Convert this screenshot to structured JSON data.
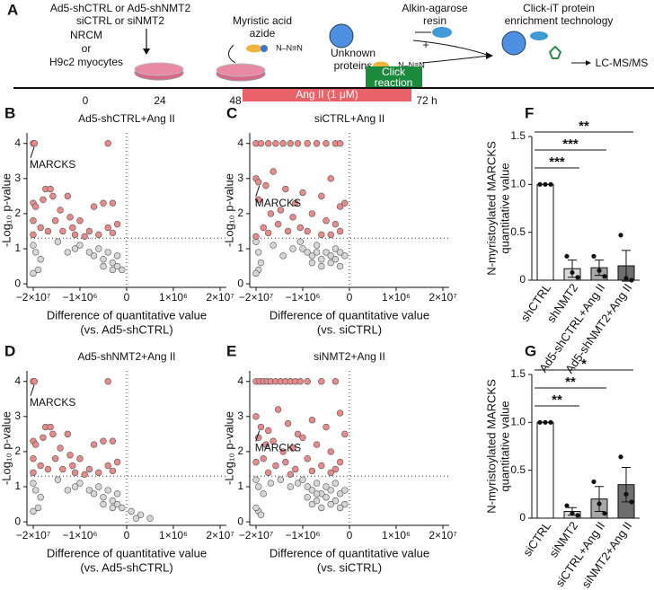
{
  "schematic": {
    "panel": "A",
    "vectors": [
      "Ad5-shCTRL or Ad5-shNMT2",
      "siCTRL or siNMT2"
    ],
    "cells": [
      "NRCM",
      "or",
      "H9c2 myocytes"
    ],
    "azide": [
      "Myristic acid",
      "azide"
    ],
    "azide_group": "N–N≡N",
    "proteins": [
      "Unknown",
      "proteins"
    ],
    "resin": [
      "Alkin-agarose",
      "resin"
    ],
    "plus": "+",
    "enrichment": [
      "Click-iT protein",
      "enrichment technology"
    ],
    "output": "LC-MS/MS",
    "timeline": [
      "0",
      "24",
      "48",
      "72 h"
    ],
    "treatment": "Ang II (1 μM)",
    "click": [
      "Click",
      "reaction"
    ]
  },
  "chart_data": [
    {
      "type": "scatter",
      "panel": "B",
      "title": "Ad5-shCTRL+Ang II",
      "xlabel": [
        "Difference of quantitative value",
        "(vs. Ad5-shCTRL)"
      ],
      "ylabel": "-Log₁₀ p-value",
      "xscale": "piecewise",
      "xlim": [
        -22600000.0,
        22600000.0
      ],
      "xticks": [
        {
          "value": -20000000.0,
          "label": "−2×10⁷"
        },
        {
          "value": -1000000.0,
          "label": "−1×10⁶"
        },
        0,
        {
          "value": 1000000.0,
          "label": "1×10⁶"
        },
        {
          "value": 20000000.0,
          "label": "2×10⁷"
        }
      ],
      "ylim": [
        -0.1,
        4.3
      ],
      "yticks": [
        0,
        1,
        2,
        3,
        4
      ],
      "hline": 1.3,
      "vline": 0,
      "series": [
        {
          "color": "#e8898a",
          "x": [
            -20000000.0,
            -19500000.0,
            -400000.0,
            -15000000.0,
            -12000000.0,
            -13000000.0,
            -20000000.0,
            -19000000.0,
            -16000000.0,
            -9000000.0,
            -6000000.0,
            -5000000.0,
            -1000000.0,
            -700000.0,
            -500000.0,
            -300000.0,
            -200000.0,
            -20000000.0,
            -17000000.0,
            -11000000.0,
            -8000000.0,
            -4000000.0,
            -800000.0,
            -600000.0,
            -400000.0,
            -20000000.0,
            -14000000.0,
            -3000000.0,
            -900000.0,
            -300000.0
          ],
          "values": [
            4,
            4,
            4,
            2.7,
            2.5,
            2.7,
            2.3,
            2.2,
            2.4,
            2.1,
            2.5,
            1.9,
            1.8,
            2.2,
            2.3,
            2.3,
            1.7,
            1.8,
            1.6,
            1.8,
            1.5,
            1.6,
            1.5,
            1.4,
            1.6,
            1.4,
            1.5,
            1.4,
            1.35,
            1.45
          ]
        },
        {
          "color": "#d6d6d6",
          "x": [
            -20000000.0,
            -19000000.0,
            -17000000.0,
            -10000000.0,
            -6000000.0,
            -3000000.0,
            -1000000.0,
            -800000.0,
            -700000.0,
            -600000.0,
            -500000.0,
            -400000.0,
            -300000.0,
            -200000.0,
            -100000.0,
            -500000.0,
            -300000.0,
            -200000.0,
            -18000000.0,
            -20000000.0
          ],
          "values": [
            1.1,
            0.9,
            0.7,
            1.2,
            0.9,
            1.0,
            1.1,
            0.9,
            0.8,
            1.0,
            0.7,
            0.9,
            0.6,
            0.8,
            0.4,
            0.5,
            0.4,
            0.5,
            0.4,
            0.3
          ]
        }
      ],
      "annotation": {
        "text": "MARCKS",
        "x": -20000000.0,
        "y": 4
      }
    },
    {
      "type": "scatter",
      "panel": "C",
      "title": "siCTRL+Ang II",
      "xlabel": [
        "Difference of quantitative value",
        "(vs. siCTRL)"
      ],
      "ylabel": "-Log₁₀ p-value",
      "xscale": "piecewise",
      "xlim": [
        -22600000.0,
        22600000.0
      ],
      "xticks": [
        {
          "value": -20000000.0,
          "label": "−2×10⁷"
        },
        {
          "value": -1000000.0,
          "label": "−1×10⁶"
        },
        0,
        {
          "value": 1000000.0,
          "label": "1×10⁶"
        },
        {
          "value": 20000000.0,
          "label": "2×10⁷"
        }
      ],
      "ylim": [
        -0.1,
        4.3
      ],
      "yticks": [
        0,
        1,
        2,
        3,
        4
      ],
      "hline": 1.3,
      "vline": 0,
      "series": [
        {
          "color": "#e8898a",
          "x": [
            -20000000.0,
            -18000000.0,
            -15000000.0,
            -12000000.0,
            -9000000.0,
            -6000000.0,
            -3000000.0,
            -900000.0,
            -700000.0,
            -500000.0,
            -300000.0,
            -200000.0,
            -20000000.0,
            -19000000.0,
            -16000000.0,
            -13000000.0,
            -8000000.0,
            -4000000.0,
            -1000000.0,
            -600000.0,
            -400000.0,
            -200000.0,
            -19000000.0,
            -14000000.0,
            -10000000.0,
            -5000000.0,
            -800000.0,
            -500000.0,
            -300000.0,
            -100000.0,
            -17000000.0,
            -11000000.0,
            -7000000.0,
            -2000000.0,
            -900000.0,
            -600000.0,
            -400000.0,
            -200000.0,
            -20000000.0,
            -15000000.0
          ],
          "values": [
            4,
            4,
            4,
            4,
            4,
            4,
            4,
            4,
            4,
            4,
            4,
            4,
            3.0,
            2.9,
            2.8,
            3.2,
            2.7,
            2.3,
            2.6,
            2.5,
            3.0,
            2.2,
            2.4,
            2.0,
            2.1,
            1.9,
            2.0,
            1.8,
            1.7,
            2.3,
            1.6,
            1.7,
            1.5,
            1.6,
            1.5,
            1.4,
            1.4,
            1.5,
            1.35,
            1.45
          ]
        },
        {
          "color": "#d6d6d6",
          "x": [
            -20000000.0,
            -19000000.0,
            -18000000.0,
            -13000000.0,
            -9000000.0,
            -5000000.0,
            -2000000.0,
            -1000000.0,
            -900000.0,
            -800000.0,
            -700000.0,
            -600000.0,
            -500000.0,
            -400000.0,
            -300000.0,
            -200000.0,
            -100000.0,
            -800000.0,
            -600000.0,
            -400000.0,
            -200000.0,
            -19000000.0,
            -20000000.0,
            -700000.0,
            -300000.0
          ],
          "values": [
            1.2,
            0.9,
            0.6,
            1.1,
            0.8,
            1.0,
            1.2,
            1.0,
            0.9,
            0.8,
            0.9,
            0.7,
            0.9,
            0.8,
            1.0,
            0.9,
            0.8,
            0.6,
            0.5,
            0.6,
            0.5,
            0.4,
            0.3,
            1.1,
            0.7
          ]
        }
      ],
      "annotation": {
        "text": "MARCKS",
        "x": -19000000.0,
        "y": 2.9
      }
    },
    {
      "type": "scatter",
      "panel": "D",
      "title": "Ad5-shNMT2+Ang II",
      "xlabel": [
        "Difference of quantitative value",
        "(vs. Ad5-shCTRL)"
      ],
      "ylabel": "-Log₁₀ p-value",
      "xscale": "piecewise",
      "xlim": [
        -22600000.0,
        22600000.0
      ],
      "xticks": [
        {
          "value": -20000000.0,
          "label": "−2×10⁷"
        },
        {
          "value": -1000000.0,
          "label": "−1×10⁶"
        },
        0,
        {
          "value": 1000000.0,
          "label": "1×10⁶"
        },
        {
          "value": 20000000.0,
          "label": "2×10⁷"
        }
      ],
      "ylim": [
        -0.1,
        4.3
      ],
      "yticks": [
        0,
        1,
        2,
        3,
        4
      ],
      "hline": 1.3,
      "vline": 0,
      "series": [
        {
          "color": "#e8898a",
          "x": [
            -20000000.0,
            -19500000.0,
            -400000.0,
            -15000000.0,
            -12000000.0,
            -13000000.0,
            -20000000.0,
            -19000000.0,
            -16000000.0,
            -9000000.0,
            -6000000.0,
            -5000000.0,
            -1000000.0,
            -700000.0,
            -500000.0,
            -300000.0,
            -200000.0,
            -20000000.0,
            -17000000.0,
            -11000000.0,
            -8000000.0,
            -4000000.0,
            -800000.0,
            -600000.0,
            -400000.0,
            -20000000.0,
            -14000000.0,
            -3000000.0,
            -900000.0,
            -300000.0
          ],
          "values": [
            4,
            4,
            4,
            2.7,
            2.5,
            2.7,
            2.3,
            2.2,
            2.4,
            2.1,
            2.5,
            1.9,
            1.8,
            2.2,
            2.3,
            2.3,
            1.7,
            1.8,
            1.6,
            1.8,
            1.5,
            1.6,
            1.5,
            1.4,
            1.6,
            1.4,
            1.5,
            1.4,
            1.35,
            1.45
          ]
        },
        {
          "color": "#d6d6d6",
          "x": [
            -20000000.0,
            -19000000.0,
            -17000000.0,
            -10000000.0,
            -6000000.0,
            -3000000.0,
            -1000000.0,
            -800000.0,
            -700000.0,
            -600000.0,
            -500000.0,
            -400000.0,
            -300000.0,
            -200000.0,
            -100000.0,
            -500000.0,
            -300000.0,
            -200000.0,
            -18000000.0,
            -20000000.0,
            100000.0,
            300000.0,
            500000.0,
            200000.0
          ],
          "values": [
            1.1,
            0.9,
            0.7,
            1.2,
            0.9,
            1.0,
            1.1,
            0.9,
            0.8,
            1.0,
            0.7,
            0.9,
            0.6,
            0.8,
            0.4,
            0.5,
            0.4,
            0.5,
            0.4,
            0.3,
            0.3,
            0.2,
            0.1,
            0.1
          ]
        }
      ],
      "annotation": {
        "text": "MARCKS",
        "x": -20000000.0,
        "y": 4
      }
    },
    {
      "type": "scatter",
      "panel": "E",
      "title": "siNMT2+Ang II",
      "xlabel": [
        "Difference of quantitative value",
        "(vs. siCTRL)"
      ],
      "ylabel": "-Log₁₀ p-value",
      "xscale": "piecewise",
      "xlim": [
        -22600000.0,
        22600000.0
      ],
      "xticks": [
        {
          "value": -20000000.0,
          "label": "−2×10⁷"
        },
        {
          "value": -1000000.0,
          "label": "−1×10⁶"
        },
        0,
        {
          "value": 1000000.0,
          "label": "1×10⁶"
        },
        {
          "value": 20000000.0,
          "label": "2×10⁷"
        }
      ],
      "ylim": [
        -0.1,
        4.3
      ],
      "yticks": [
        0,
        1,
        2,
        3,
        4
      ],
      "hline": 1.3,
      "vline": 0,
      "series": [
        {
          "color": "#e8898a",
          "x": [
            -20000000.0,
            -18500000.0,
            -17000000.0,
            -15500000.0,
            -14000000.0,
            -12000000.0,
            -10000000.0,
            -8000000.0,
            -6000000.0,
            -4000000.0,
            -2000000.0,
            -900000.0,
            -600000.0,
            -300000.0,
            -20000000.0,
            -18000000.0,
            -15000000.0,
            -11000000.0,
            -7000000.0,
            -3000000.0,
            -800000.0,
            -500000.0,
            -200000.0,
            -19000000.0,
            -16000000.0,
            -13000000.0,
            -9000000.0,
            -5000000.0,
            -1000000.0,
            -700000.0,
            -400000.0,
            -100000.0,
            -20000000.0,
            -17000000.0,
            -12000000.0,
            -8000000.0,
            -4000000.0,
            -900000.0,
            -600000.0,
            -300000.0,
            -200000.0,
            -15000000.0,
            -6000000.0,
            -800000.0,
            -400000.0
          ],
          "values": [
            4,
            4,
            4,
            4,
            4,
            4,
            4,
            4,
            4,
            4,
            4,
            4,
            4,
            4,
            3.0,
            2.7,
            2.6,
            3.2,
            2.8,
            2.5,
            2.9,
            2.7,
            3.1,
            2.4,
            2.2,
            2.3,
            2.0,
            2.1,
            2.4,
            2.2,
            2.0,
            2.5,
            1.7,
            1.8,
            1.6,
            1.7,
            1.5,
            1.8,
            1.6,
            1.5,
            1.7,
            1.4,
            1.35,
            1.45,
            1.4
          ]
        },
        {
          "color": "#d6d6d6",
          "x": [
            -20000000.0,
            -19000000.0,
            -17000000.0,
            -14000000.0,
            -10000000.0,
            -6000000.0,
            -3000000.0,
            -1000000.0,
            -900000.0,
            -800000.0,
            -700000.0,
            -600000.0,
            -500000.0,
            -400000.0,
            -300000.0,
            -200000.0,
            -100000.0,
            -900000.0,
            -700000.0,
            -500000.0,
            -300000.0,
            -100000.0,
            -800000.0,
            -600000.0,
            -400000.0,
            -200000.0,
            -19000000.0,
            -20000000.0,
            -18000000.0,
            -700000.0
          ],
          "values": [
            1.2,
            1.0,
            0.8,
            1.1,
            1.2,
            1.0,
            1.1,
            1.2,
            1.0,
            0.9,
            1.1,
            0.8,
            1.0,
            0.9,
            1.1,
            0.8,
            0.9,
            0.7,
            0.6,
            0.7,
            0.6,
            0.5,
            0.5,
            0.4,
            0.5,
            0.4,
            0.3,
            0.4,
            0.2,
            0.8
          ]
        }
      ],
      "annotation": {
        "text": "MARCKS",
        "x": -19000000.0,
        "y": 2.7
      }
    },
    {
      "type": "bar",
      "panel": "F",
      "ylabel": [
        "N-myristoylated MARCKS",
        "quantitative value"
      ],
      "categories": [
        "shCTRL",
        "shNMT2",
        "Ad5-shCTRL+Ang II",
        "Ad5-shNMT2+Ang II"
      ],
      "values": [
        1.0,
        0.12,
        0.13,
        0.15
      ],
      "errors": [
        0,
        0.09,
        0.08,
        0.16
      ],
      "points": [
        [
          1,
          1,
          1
        ],
        [
          0.25,
          0.08,
          0.03
        ],
        [
          0.25,
          0.1,
          0.04
        ],
        [
          0.47,
          0.02,
          0
        ]
      ],
      "colors": [
        "#ffffff",
        "#d9d9d9",
        "#a6a6a6",
        "#6e6e6e"
      ],
      "ylim": [
        0,
        1.5
      ],
      "yticks": [
        0,
        0.5,
        {
          "value": 1,
          "label": "1.0"
        },
        1.5
      ],
      "comparisons": [
        {
          "pair": [
            0,
            3
          ],
          "label": "**"
        },
        {
          "pair": [
            0,
            2
          ],
          "label": "***"
        },
        {
          "pair": [
            0,
            1
          ],
          "label": "***"
        }
      ]
    },
    {
      "type": "bar",
      "panel": "G",
      "ylabel": [
        "N-myristoylated MARCKS",
        "quantitative value"
      ],
      "categories": [
        "siCTRL",
        "siNMT2",
        "siCTRL+Ang II",
        "siNMT2+Ang II"
      ],
      "values": [
        1.0,
        0.07,
        0.2,
        0.35
      ],
      "errors": [
        0,
        0.04,
        0.13,
        0.18
      ],
      "points": [
        [
          1,
          1,
          1
        ],
        [
          0.13,
          0.05,
          0.03
        ],
        [
          0.38,
          0.15,
          0.05
        ],
        [
          0.64,
          0.25,
          0.17
        ]
      ],
      "colors": [
        "#ffffff",
        "#d9d9d9",
        "#a6a6a6",
        "#6e6e6e"
      ],
      "ylim": [
        0,
        1.5
      ],
      "yticks": [
        0,
        0.5,
        {
          "value": 1,
          "label": "1.0"
        },
        1.5
      ],
      "comparisons": [
        {
          "pair": [
            0,
            3
          ],
          "label": "*"
        },
        {
          "pair": [
            0,
            2
          ],
          "label": "**"
        },
        {
          "pair": [
            0,
            1
          ],
          "label": "**"
        }
      ]
    }
  ]
}
